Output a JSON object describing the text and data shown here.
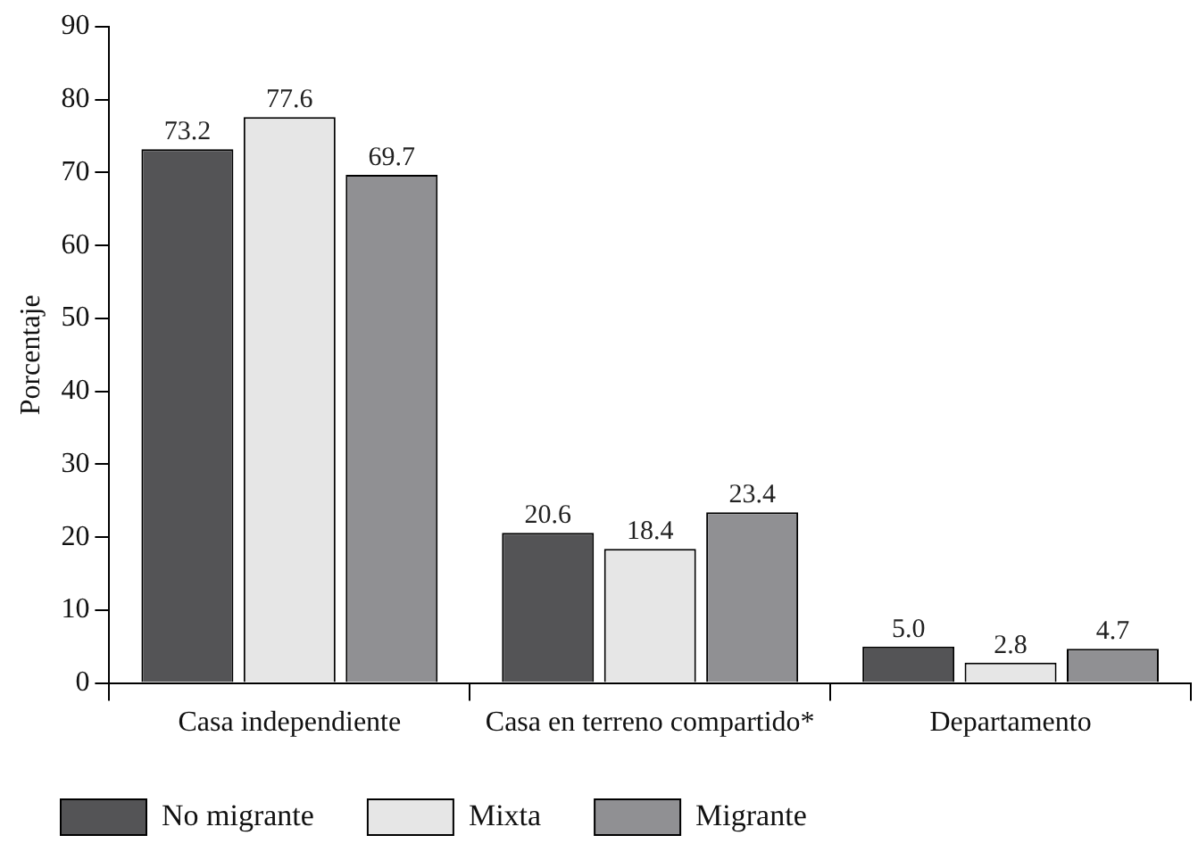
{
  "chart_data": {
    "type": "bar",
    "ylabel": "Porcentaje",
    "categories": [
      "Casa independiente",
      "Casa en terreno compartido*",
      "Departamento"
    ],
    "series": [
      {
        "name": "No migrante",
        "color": "#545456",
        "values": [
          73.2,
          20.6,
          5.0
        ],
        "value_labels": [
          "73.2",
          "20.6",
          "5.0"
        ]
      },
      {
        "name": "Mixta",
        "color": "#e6e6e6",
        "values": [
          77.6,
          18.4,
          2.8
        ],
        "value_labels": [
          "77.6",
          "18.4",
          "2.8"
        ]
      },
      {
        "name": "Migrante",
        "color": "#909093",
        "values": [
          69.7,
          23.4,
          4.7
        ],
        "value_labels": [
          "69.7",
          "23.4",
          "4.7"
        ]
      }
    ],
    "ylim": [
      0,
      90
    ],
    "yticks": [
      0,
      10,
      20,
      30,
      40,
      50,
      60,
      70,
      80,
      90
    ],
    "grid": false,
    "legend": "bottom"
  }
}
